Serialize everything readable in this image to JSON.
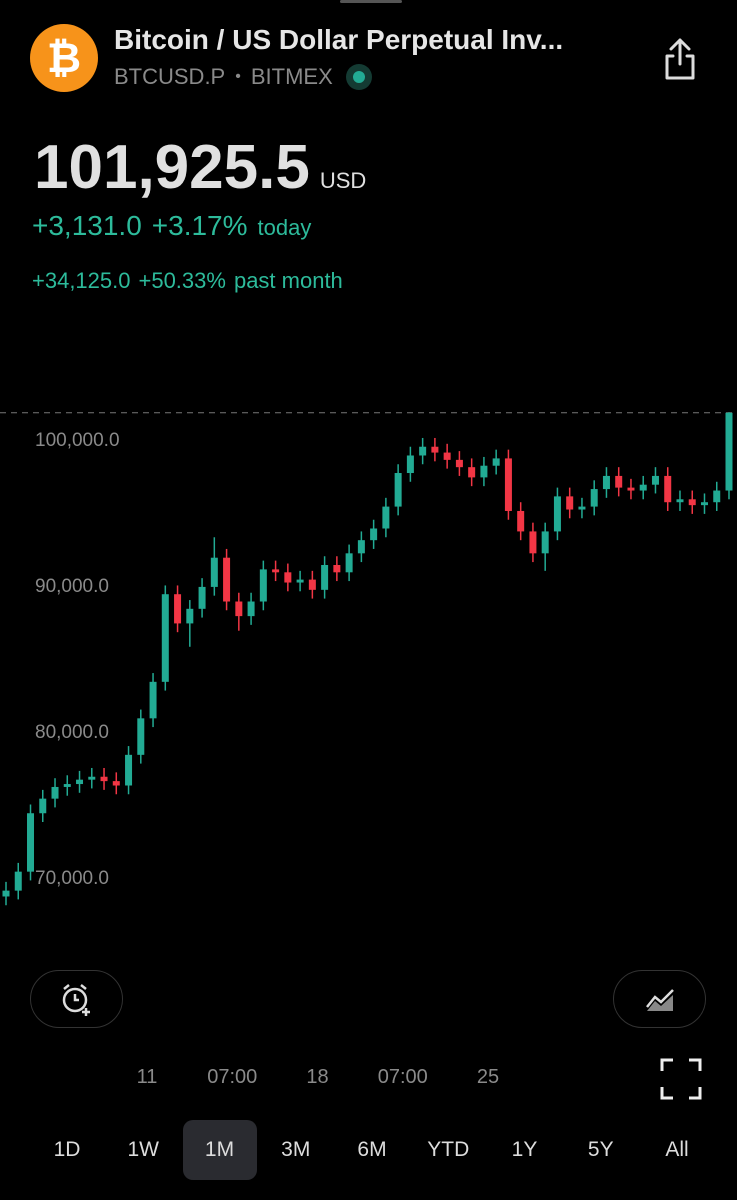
{
  "header": {
    "icon": "₿",
    "symbol_name": "Bitcoin / US Dollar Perpetual Inv...",
    "ticker": "BTCUSD.P",
    "exchange": "BITMEX"
  },
  "quote": {
    "price": "101,925.5",
    "currency": "USD",
    "change_today": "+3,131.0",
    "change_today_pct": "+3.17%",
    "today_label": "today",
    "change_month": "+34,125.0",
    "change_month_pct": "+50.33%",
    "month_label": "past month"
  },
  "chart_data": {
    "type": "candlestick",
    "up_color": "#22ab94",
    "down_color": "#f23645",
    "open": [
      68800,
      69200,
      70500,
      74500,
      75500,
      76300,
      76500,
      76800,
      77000,
      76700,
      76400,
      78500,
      81000,
      83500,
      89500,
      87500,
      88500,
      90000,
      92000,
      89000,
      88000,
      89000,
      91200,
      91000,
      90300,
      90500,
      89800,
      91500,
      91000,
      92300,
      93200,
      94000,
      95500,
      97800,
      99000,
      99600,
      99200,
      98700,
      98200,
      97500,
      98300,
      98800,
      95200,
      93800,
      92300,
      93800,
      96200,
      95300,
      95500,
      96700,
      97600,
      96800,
      96600,
      97000,
      97600,
      95800,
      96000,
      95600,
      95800,
      96600
    ],
    "high": [
      69800,
      71100,
      75100,
      76100,
      76900,
      77100,
      77400,
      77600,
      77600,
      77300,
      79100,
      81600,
      84100,
      90100,
      90100,
      89100,
      90600,
      93400,
      92600,
      89600,
      89600,
      91800,
      91800,
      91600,
      91100,
      91100,
      92100,
      92100,
      92900,
      93800,
      94600,
      96100,
      98400,
      99600,
      100200,
      100200,
      99800,
      99300,
      98800,
      98900,
      99400,
      99400,
      95800,
      94400,
      94400,
      96800,
      96800,
      96100,
      97300,
      98200,
      98200,
      97400,
      97600,
      98200,
      98200,
      96600,
      96600,
      96400,
      97200,
      101960
    ],
    "low": [
      68200,
      68600,
      69900,
      73900,
      74900,
      75700,
      75900,
      76200,
      76100,
      75800,
      75800,
      77900,
      80400,
      82900,
      86900,
      85900,
      87900,
      89400,
      88400,
      87000,
      87400,
      88400,
      90400,
      89700,
      89700,
      89200,
      89200,
      90400,
      90400,
      91700,
      92600,
      93400,
      94900,
      97200,
      98400,
      98600,
      98100,
      97600,
      96900,
      96900,
      97700,
      94600,
      93200,
      91700,
      91100,
      93200,
      94700,
      94700,
      94900,
      96100,
      96200,
      96000,
      96000,
      96400,
      95200,
      95200,
      95000,
      95000,
      95200,
      96000
    ],
    "close": [
      69200,
      70500,
      74500,
      75500,
      76300,
      76500,
      76800,
      77000,
      76700,
      76400,
      78500,
      81000,
      83500,
      89500,
      87500,
      88500,
      90000,
      92000,
      89000,
      88000,
      89000,
      91200,
      91000,
      90300,
      90500,
      89800,
      91500,
      91000,
      92300,
      93200,
      94000,
      95500,
      97800,
      99000,
      99600,
      99200,
      98700,
      98200,
      97500,
      98300,
      98800,
      95200,
      93800,
      92300,
      93800,
      96200,
      95300,
      95500,
      96700,
      97600,
      96800,
      96600,
      97000,
      97600,
      95800,
      96000,
      95600,
      95800,
      96600,
      101925.5
    ],
    "last_price": 101925.5,
    "ylim": [
      64450,
      102800
    ],
    "yticks": [
      {
        "value": 70000,
        "label": "70,000.0"
      },
      {
        "value": 80000,
        "label": "80,000.0"
      },
      {
        "value": 90000,
        "label": "90,000.0"
      },
      {
        "value": 100000,
        "label": "100,000.0"
      }
    ],
    "xtick_labels": [
      "11",
      "07:00",
      "18",
      "07:00",
      "25"
    ]
  },
  "timeframes": [
    "1D",
    "1W",
    "1M",
    "3M",
    "6M",
    "YTD",
    "1Y",
    "5Y",
    "All"
  ],
  "selected_timeframe": 2
}
